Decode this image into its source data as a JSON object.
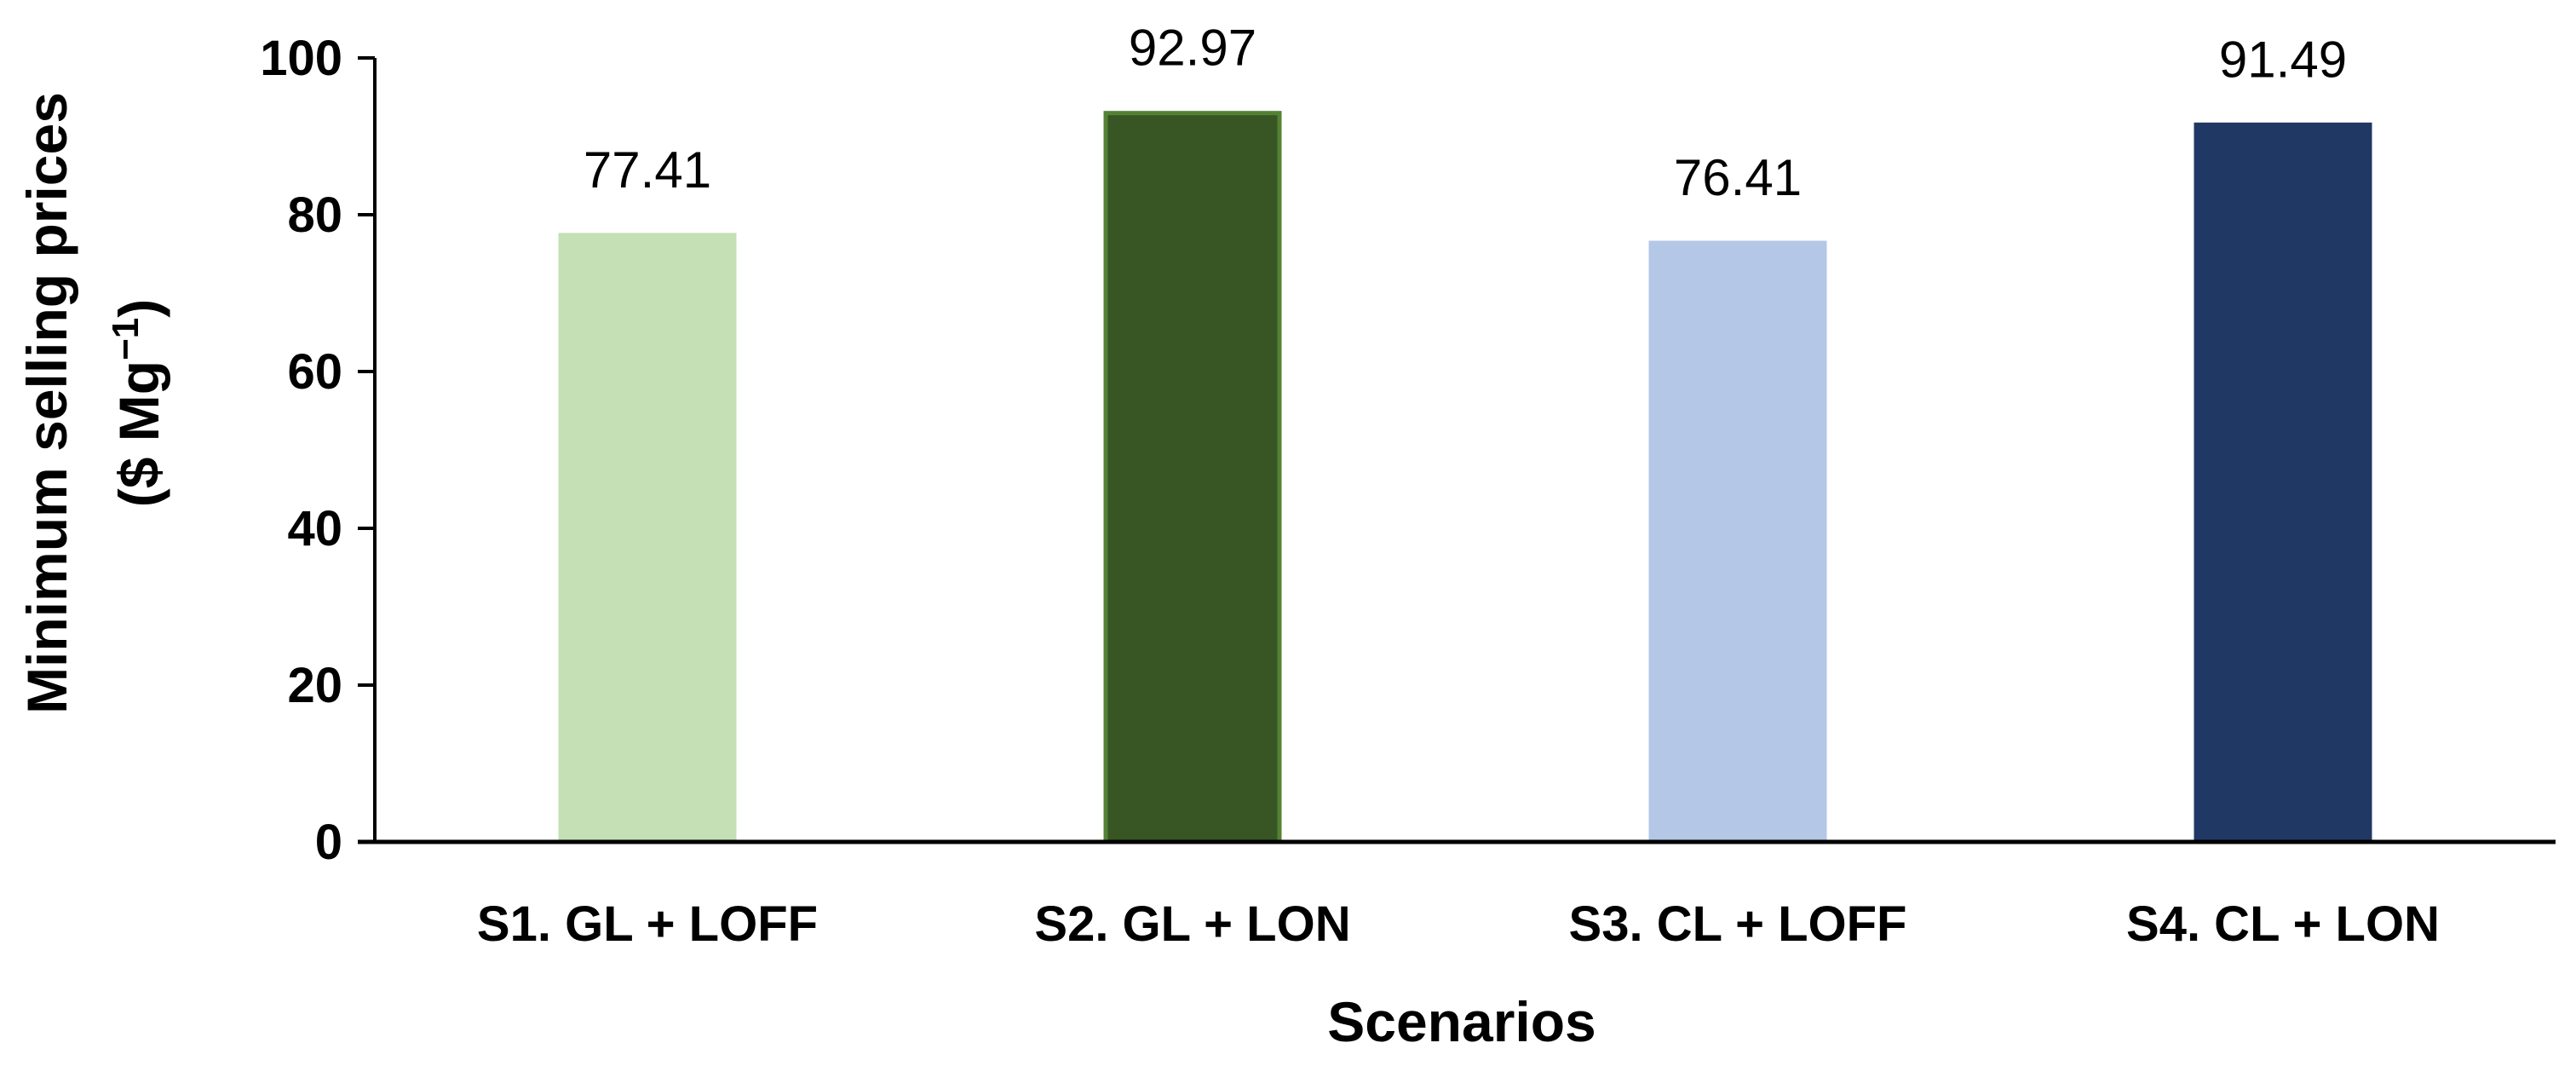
{
  "chart_data": {
    "type": "bar",
    "title": "",
    "categories": [
      "S1. GL + LOFF",
      "S2. GL + LON",
      "S3. CL + LOFF",
      "S4. CL + LON"
    ],
    "values": [
      77.41,
      92.97,
      76.41,
      91.49
    ],
    "data_labels": [
      "77.41",
      "92.97",
      "76.41",
      "91.49"
    ],
    "bar_colors": [
      "#c5e0b4",
      "#375623",
      "#b4c7e7",
      "#203864"
    ],
    "bar_edge_colors": [
      "#c5e0b4",
      "#548235",
      "#b4c7e7",
      "#203864"
    ],
    "xlabel": "Scenarios",
    "ylabel_line1": "Minimum selling prices",
    "ylabel_line2_prefix": "($ Mg",
    "ylabel_line2_sup": "−1",
    "ylabel_line2_suffix": ")",
    "ylim": [
      0,
      100
    ],
    "yticks": [
      0,
      20,
      40,
      60,
      80,
      100
    ],
    "grid": false,
    "legend": "none"
  }
}
